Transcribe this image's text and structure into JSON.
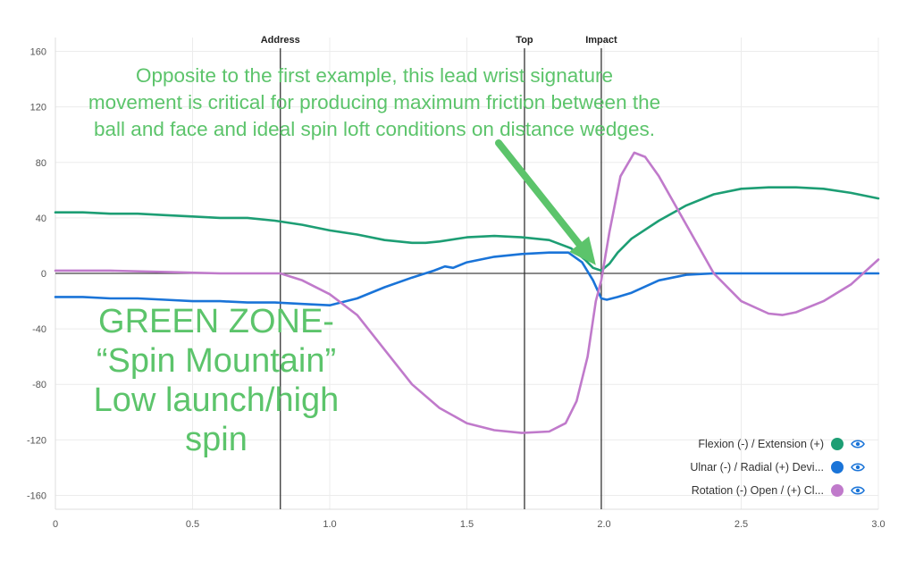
{
  "chart_data": {
    "type": "line",
    "xlim": [
      0,
      3.0
    ],
    "ylim": [
      -170,
      170
    ],
    "x_ticks": [
      "0",
      "0.5",
      "1.0",
      "1.5",
      "2.0",
      "2.5",
      "3.0"
    ],
    "y_ticks": [
      "160",
      "120",
      "80",
      "40",
      "0",
      "-40",
      "-80",
      "-120",
      "-160"
    ],
    "grid": true,
    "legend_position": "bottom-right",
    "markers": [
      {
        "label": "Address",
        "x": 0.82
      },
      {
        "label": "Top",
        "x": 1.71
      },
      {
        "label": "Impact",
        "x": 1.99
      }
    ],
    "series": [
      {
        "name": "Flexion (-) / Extension (+)",
        "color": "#1d9e74",
        "x": [
          0,
          0.1,
          0.2,
          0.3,
          0.4,
          0.5,
          0.6,
          0.7,
          0.8,
          0.9,
          1.0,
          1.1,
          1.2,
          1.3,
          1.35,
          1.4,
          1.5,
          1.6,
          1.7,
          1.8,
          1.88,
          1.93,
          1.96,
          1.99,
          2.02,
          2.05,
          2.1,
          2.2,
          2.3,
          2.4,
          2.5,
          2.6,
          2.7,
          2.8,
          2.9,
          3.0
        ],
        "values": [
          44,
          44,
          43,
          43,
          42,
          41,
          40,
          40,
          38,
          35,
          31,
          28,
          24,
          22,
          22,
          23,
          26,
          27,
          26,
          24,
          18,
          10,
          4,
          2,
          7,
          15,
          25,
          38,
          49,
          57,
          61,
          62,
          62,
          61,
          58,
          54
        ]
      },
      {
        "name": "Ulnar (-) / Radial (+) Devi...",
        "color": "#1a74d8",
        "x": [
          0,
          0.1,
          0.2,
          0.3,
          0.4,
          0.5,
          0.6,
          0.7,
          0.8,
          0.9,
          1.0,
          1.1,
          1.2,
          1.3,
          1.38,
          1.42,
          1.45,
          1.5,
          1.6,
          1.7,
          1.8,
          1.87,
          1.92,
          1.96,
          1.99,
          2.01,
          2.05,
          2.1,
          2.2,
          2.3,
          2.4,
          2.5,
          2.6,
          2.7,
          2.8,
          2.9,
          3.0
        ],
        "values": [
          -17,
          -17,
          -18,
          -18,
          -19,
          -20,
          -20,
          -21,
          -21,
          -22,
          -23,
          -18,
          -10,
          -3,
          2,
          5,
          4,
          8,
          12,
          14,
          15,
          15,
          8,
          -5,
          -18,
          -19,
          -17,
          -14,
          -5,
          -1,
          0,
          0,
          0,
          0,
          0,
          0,
          0
        ]
      },
      {
        "name": "Rotation (-) Open / (+) Cl...",
        "color": "#c07acb",
        "x": [
          0,
          0.2,
          0.4,
          0.6,
          0.82,
          0.9,
          1.0,
          1.1,
          1.2,
          1.3,
          1.4,
          1.5,
          1.6,
          1.7,
          1.8,
          1.86,
          1.9,
          1.94,
          1.97,
          1.99,
          2.02,
          2.06,
          2.11,
          2.15,
          2.2,
          2.3,
          2.4,
          2.5,
          2.6,
          2.65,
          2.7,
          2.8,
          2.9,
          3.0
        ],
        "values": [
          2,
          2,
          1,
          0,
          0,
          -5,
          -15,
          -30,
          -55,
          -80,
          -97,
          -108,
          -113,
          -115,
          -114,
          -108,
          -92,
          -60,
          -20,
          -5,
          30,
          70,
          87,
          84,
          70,
          35,
          0,
          -20,
          -29,
          -30,
          -28,
          -20,
          -8,
          10
        ]
      }
    ]
  },
  "annotations": {
    "note_lines": [
      "Opposite to the first example, this lead wrist signature",
      "movement is critical for producing maximum friction between the",
      "ball and face and ideal spin loft conditions on distance wedges."
    ],
    "zone_lines": [
      "GREEN ZONE-",
      "“Spin Mountain”",
      "Low launch/high",
      "spin"
    ],
    "arrow_color": "#5cc46b"
  }
}
